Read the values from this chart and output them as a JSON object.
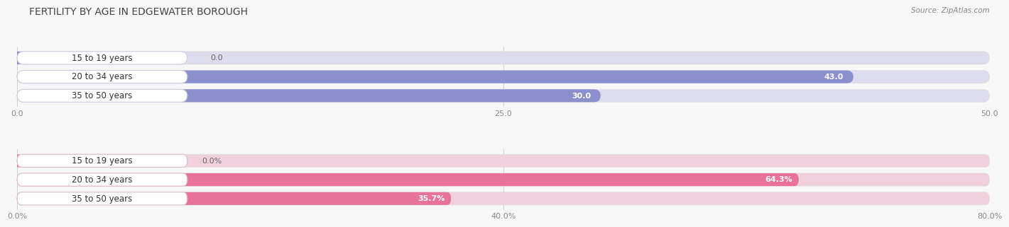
{
  "title": "FERTILITY BY AGE IN EDGEWATER BOROUGH",
  "source": "Source: ZipAtlas.com",
  "top_chart": {
    "categories": [
      "15 to 19 years",
      "20 to 34 years",
      "35 to 50 years"
    ],
    "values": [
      0.0,
      43.0,
      30.0
    ],
    "xlim": [
      0,
      50
    ],
    "xticks": [
      0.0,
      25.0,
      50.0
    ],
    "xtick_labels": [
      "0.0",
      "25.0",
      "50.0"
    ],
    "bar_color": "#8b8fcc",
    "bar_bg_color": "#dcdcec",
    "label_bg_color": "#ffffff",
    "label_border_color": "#ccccdd",
    "value_color_inside": "#ffffff",
    "value_color_outside": "#888888"
  },
  "bottom_chart": {
    "categories": [
      "15 to 19 years",
      "20 to 34 years",
      "35 to 50 years"
    ],
    "values": [
      0.0,
      64.3,
      35.7
    ],
    "xlim": [
      0,
      80
    ],
    "xticks": [
      0.0,
      40.0,
      80.0
    ],
    "xtick_labels": [
      "0.0%",
      "40.0%",
      "80.0%"
    ],
    "bar_color": "#e8729a",
    "bar_bg_color": "#f0d0dc",
    "label_bg_color": "#ffffff",
    "label_border_color": "#ddbbcc",
    "value_color_inside": "#ffffff",
    "value_color_outside": "#888888"
  },
  "fig_bg_color": "#f7f7f7",
  "title_fontsize": 10,
  "label_fontsize": 8,
  "tick_fontsize": 8,
  "category_fontsize": 8.5
}
